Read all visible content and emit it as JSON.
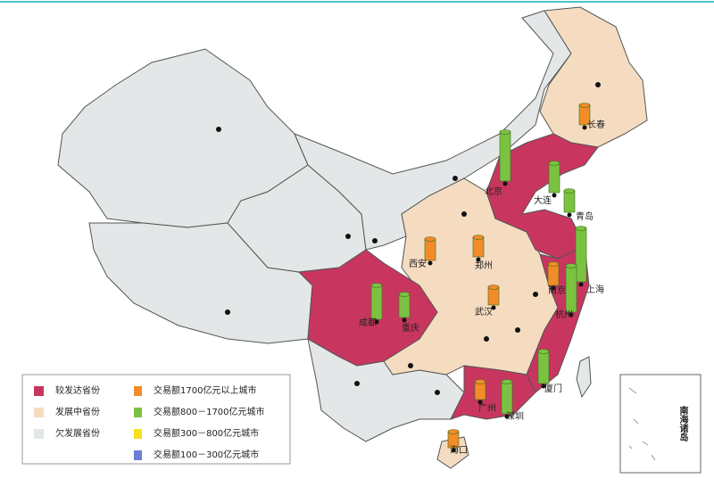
{
  "legend": {
    "provinces": [
      {
        "label": "较发达省份",
        "color": "#c8365f"
      },
      {
        "label": "发展中省份",
        "color": "#f5dcc0"
      },
      {
        "label": "欠发展省份",
        "color": "#e3e7e8"
      }
    ],
    "cities": [
      {
        "label": "交易额1700亿元以上城市",
        "color": "#f28c28",
        "cities": [
          "长春",
          "西安",
          "郑州",
          "武汉",
          "南京",
          "广州",
          "海口"
        ]
      },
      {
        "label": "交易额800－1700亿元城市",
        "color": "#7cc242",
        "cities": [
          "北京",
          "大连",
          "青岛",
          "上海",
          "成都",
          "重庆",
          "杭州",
          "厦门",
          "深圳"
        ]
      },
      {
        "label": "交易额300－800亿元城市",
        "color": "#f5e11e",
        "cities": []
      },
      {
        "label": "交易额100－300亿元城市",
        "color": "#6b7fd7",
        "cities": []
      }
    ]
  },
  "inset": {
    "label": "南海诸岛"
  }
}
